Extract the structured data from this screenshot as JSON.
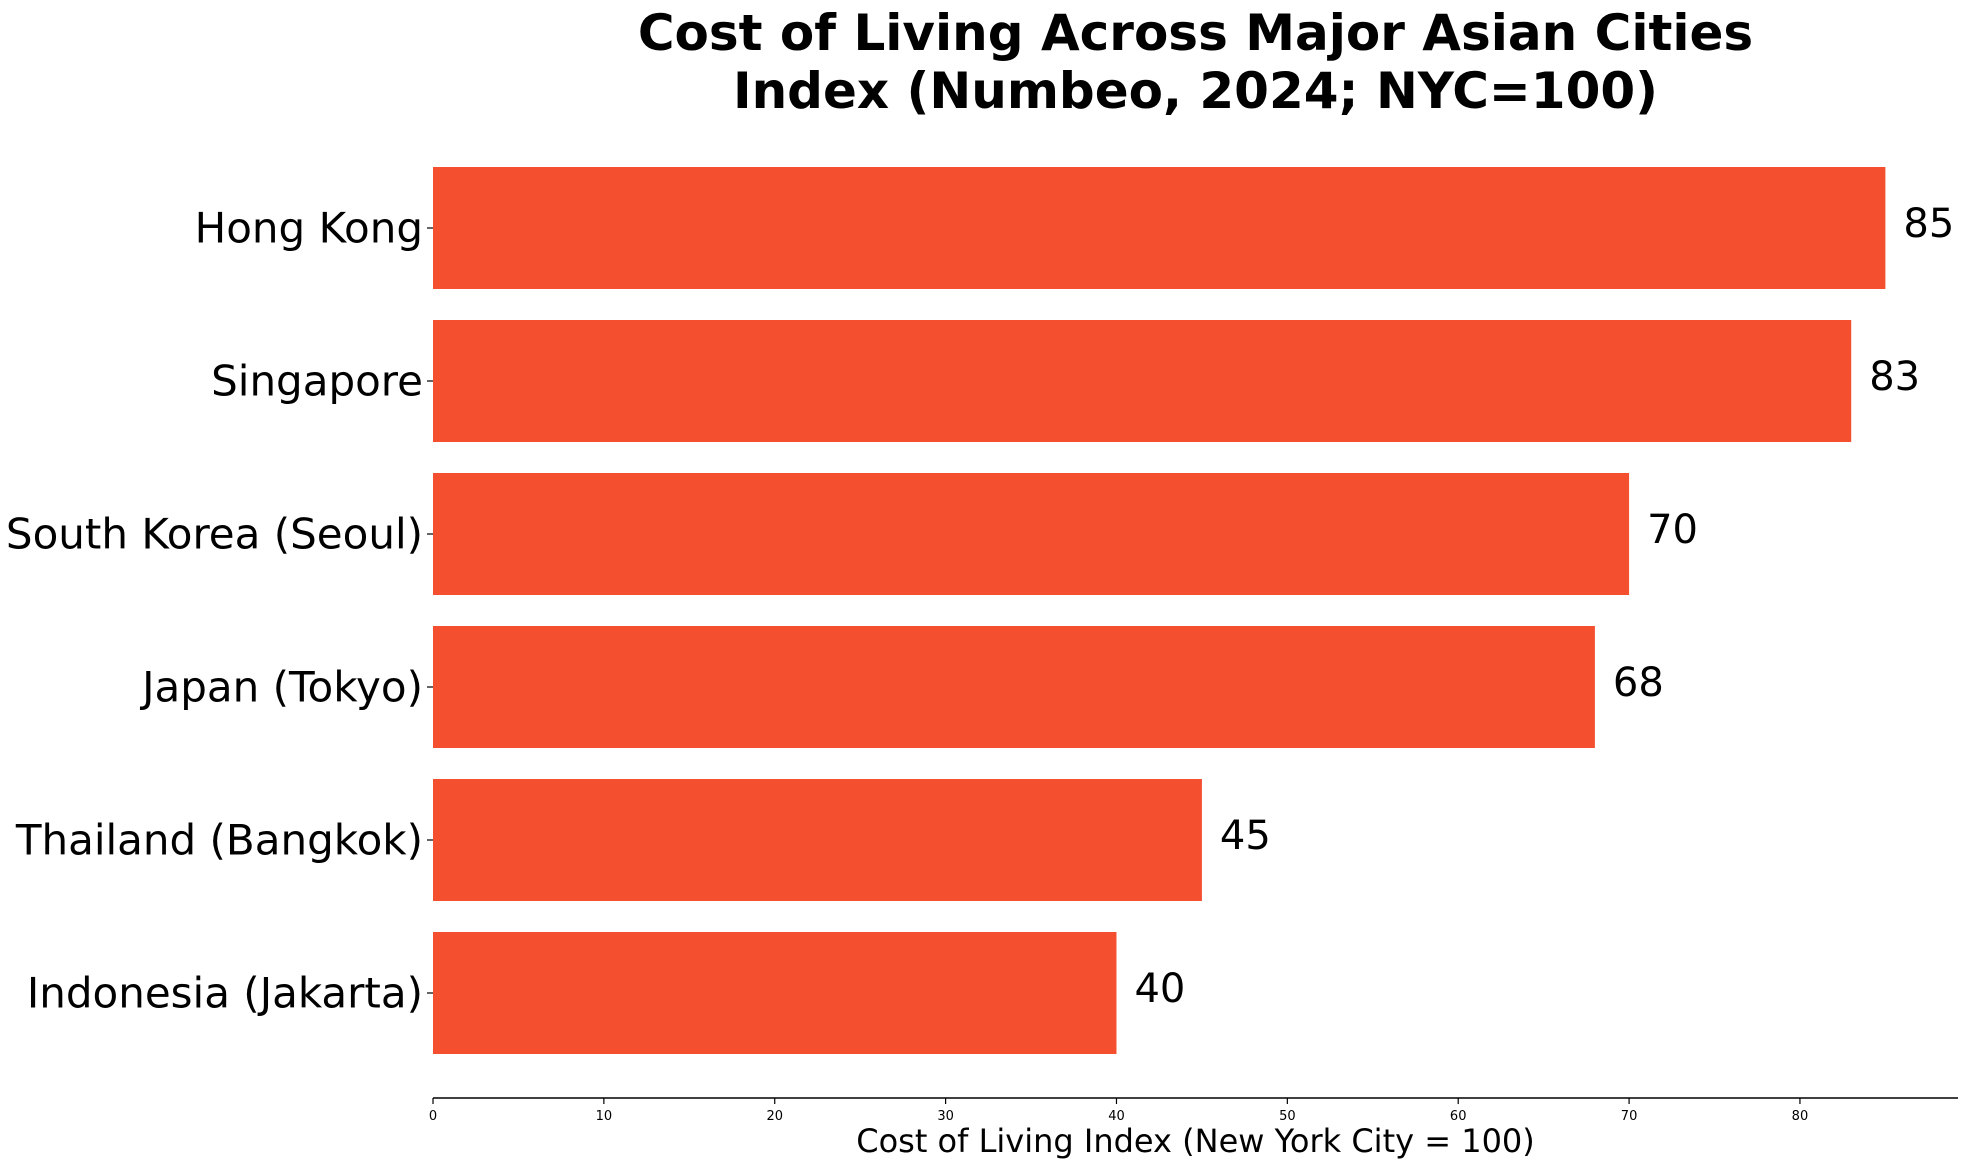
{
  "chart_data": {
    "type": "bar",
    "orientation": "horizontal",
    "title_lines": [
      "Cost of Living Across Major Asian Cities",
      "Index (Numbeo, 2024; NYC=100)"
    ],
    "xlabel": "Cost of Living Index (New York City = 100)",
    "ylabel": "",
    "categories": [
      "Hong Kong",
      "Singapore",
      "South Korea (Seoul)",
      "Japan (Tokyo)",
      "Thailand (Bangkok)",
      "Indonesia (Jakarta)"
    ],
    "values": [
      85,
      83,
      70,
      68,
      45,
      40
    ],
    "xlim": [
      0,
      89.25
    ],
    "xticks": [
      0,
      10,
      20,
      30,
      40,
      50,
      60,
      70,
      80
    ],
    "grid": false,
    "bar_color": "#f44f2f",
    "data_labels": true
  }
}
